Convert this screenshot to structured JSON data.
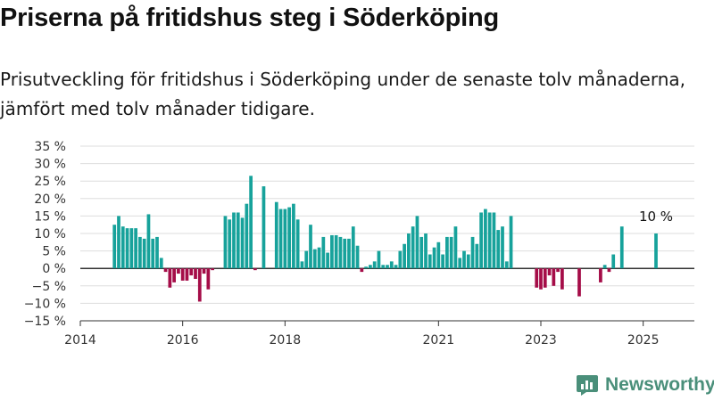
{
  "header": {
    "title": "Priserna på fritidshus steg i Söderköping",
    "subtitle": "Prisutveckling för fritidshus i Söderköping under de senaste tolv månaderna, jämfört med tolv månader tidigare."
  },
  "brand": {
    "name": "Newsworthy",
    "icon": "newsworthy-logo-icon",
    "color": "#4a8f7a"
  },
  "colors": {
    "positive": "#17a29b",
    "negative": "#a50d48",
    "grid": "#dddddd",
    "zero_line": "#333333"
  },
  "chart_data": {
    "type": "bar",
    "title": "Priserna på fritidshus steg i Söderköping",
    "subtitle": "Prisutveckling för fritidshus i Söderköping under de senaste tolv månaderna, jämfört med tolv månader tidigare.",
    "xlabel": "",
    "ylabel": "",
    "x_ticks": [
      "2014",
      "2016",
      "2018",
      "2021",
      "2023",
      "2025"
    ],
    "y_ticks": [
      "35 %",
      "30 %",
      "25 %",
      "20 %",
      "15 %",
      "10 %",
      "5 %",
      "0 %",
      "−5 %",
      "−10 %",
      "−15 %"
    ],
    "ylim": [
      -15,
      35
    ],
    "xlim": [
      "2014-01",
      "2026-01"
    ],
    "grid": true,
    "annotations": [
      {
        "date": "2025-04",
        "text": "10 %"
      }
    ],
    "series": [
      {
        "dates": [
          "2014-09",
          "2014-10",
          "2014-11",
          "2014-12",
          "2015-01",
          "2015-02",
          "2015-03",
          "2015-04",
          "2015-05",
          "2015-06",
          "2015-07",
          "2015-08",
          "2015-09",
          "2015-10",
          "2015-11",
          "2015-12",
          "2016-01",
          "2016-02",
          "2016-03",
          "2016-04",
          "2016-05",
          "2016-06",
          "2016-07",
          "2016-08",
          "2016-11",
          "2016-12",
          "2017-01",
          "2017-02",
          "2017-03",
          "2017-04",
          "2017-05",
          "2017-06",
          "2017-08",
          "2017-11",
          "2017-12",
          "2018-01",
          "2018-02",
          "2018-03",
          "2018-04",
          "2018-05",
          "2018-06",
          "2018-07",
          "2018-08",
          "2018-09",
          "2018-10",
          "2018-11",
          "2018-12",
          "2019-01",
          "2019-02",
          "2019-03",
          "2019-04",
          "2019-05",
          "2019-06",
          "2019-07",
          "2019-08",
          "2019-09",
          "2019-10",
          "2019-11",
          "2019-12",
          "2020-01",
          "2020-02",
          "2020-03",
          "2020-04",
          "2020-05",
          "2020-06",
          "2020-07",
          "2020-08",
          "2020-09",
          "2020-10",
          "2020-11",
          "2020-12",
          "2021-01",
          "2021-02",
          "2021-03",
          "2021-04",
          "2021-05",
          "2021-06",
          "2021-07",
          "2021-08",
          "2021-09",
          "2021-10",
          "2021-11",
          "2021-12",
          "2022-01",
          "2022-02",
          "2022-03",
          "2022-04",
          "2022-05",
          "2022-06",
          "2022-12",
          "2023-01",
          "2023-02",
          "2023-03",
          "2023-04",
          "2023-05",
          "2023-06",
          "2023-10",
          "2024-03",
          "2024-04",
          "2024-05",
          "2024-06",
          "2024-08",
          "2025-04"
        ],
        "values": [
          12.5,
          15,
          12,
          11.5,
          11.5,
          11.5,
          9,
          8.5,
          15.5,
          8.5,
          9,
          3,
          -1,
          -5.5,
          -4,
          -1.5,
          -3.5,
          -3.5,
          -2,
          -3,
          -9.5,
          -1.5,
          -6,
          -0.5,
          15,
          14,
          16,
          16,
          14.5,
          18.5,
          26.5,
          -0.5,
          23.5,
          19,
          17,
          17,
          17.5,
          18.5,
          14,
          2,
          5,
          12.5,
          5.5,
          6,
          9,
          4.5,
          9.5,
          9.5,
          9,
          8.5,
          8.5,
          12,
          6.5,
          -1,
          0.5,
          1,
          2,
          5,
          1,
          1,
          2,
          1,
          5,
          7,
          10,
          12,
          15,
          9,
          10,
          4,
          6,
          7.5,
          4,
          9,
          9,
          12,
          3,
          5,
          4,
          9,
          7,
          16,
          17,
          16,
          16,
          11,
          12,
          2,
          15,
          -5.5,
          -6,
          -5.5,
          -2,
          -5,
          -1,
          -6,
          -8,
          -4,
          1,
          -1,
          4,
          12,
          10
        ]
      }
    ]
  }
}
